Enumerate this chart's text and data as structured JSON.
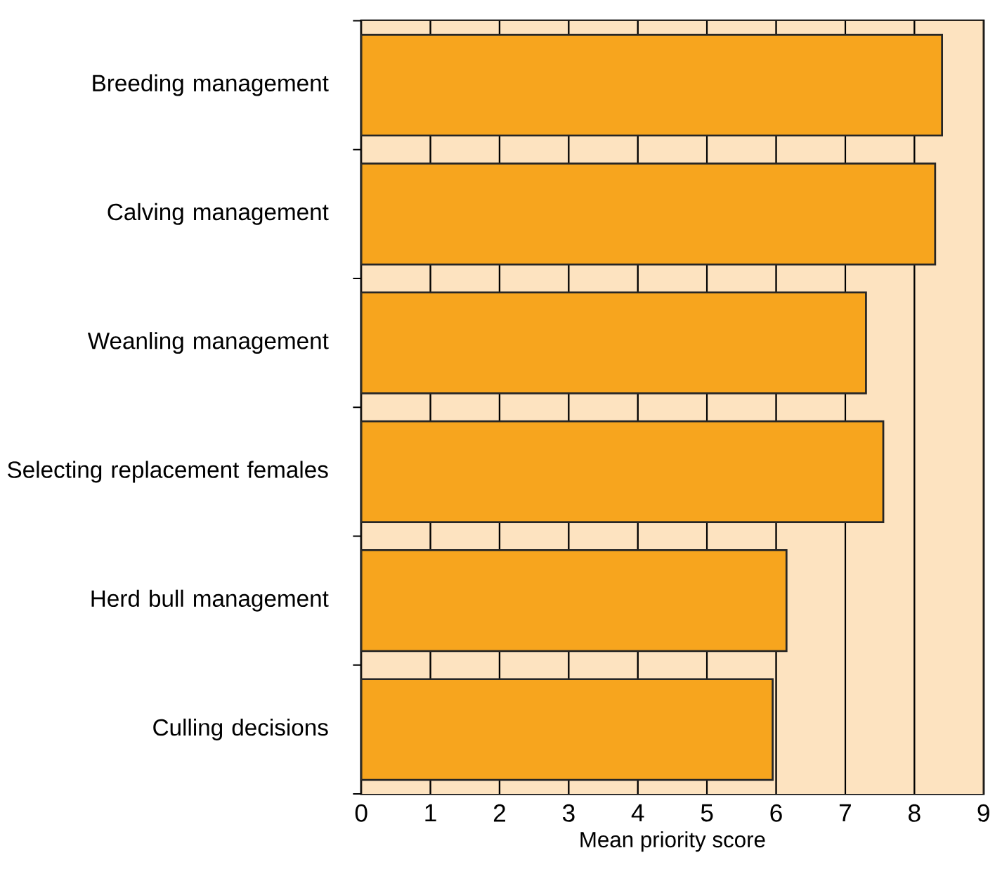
{
  "chart_data": {
    "type": "bar",
    "orientation": "horizontal",
    "xlabel": "Mean priority score",
    "categories": [
      "Breeding management",
      "Calving management",
      "Weanling management",
      "Selecting replacement females",
      "Herd bull management",
      "Culling decisions"
    ],
    "values": [
      8.4,
      8.3,
      7.3,
      7.55,
      6.15,
      5.95
    ],
    "color": "#f7a51e",
    "bands": [
      {
        "axis": "x",
        "from": 0,
        "to": 9,
        "color": "#fde3c0"
      }
    ],
    "xlim": [
      0,
      9
    ],
    "xticks": [
      0,
      1,
      2,
      3,
      4,
      5,
      6,
      7,
      8,
      9
    ],
    "grid": "x"
  }
}
